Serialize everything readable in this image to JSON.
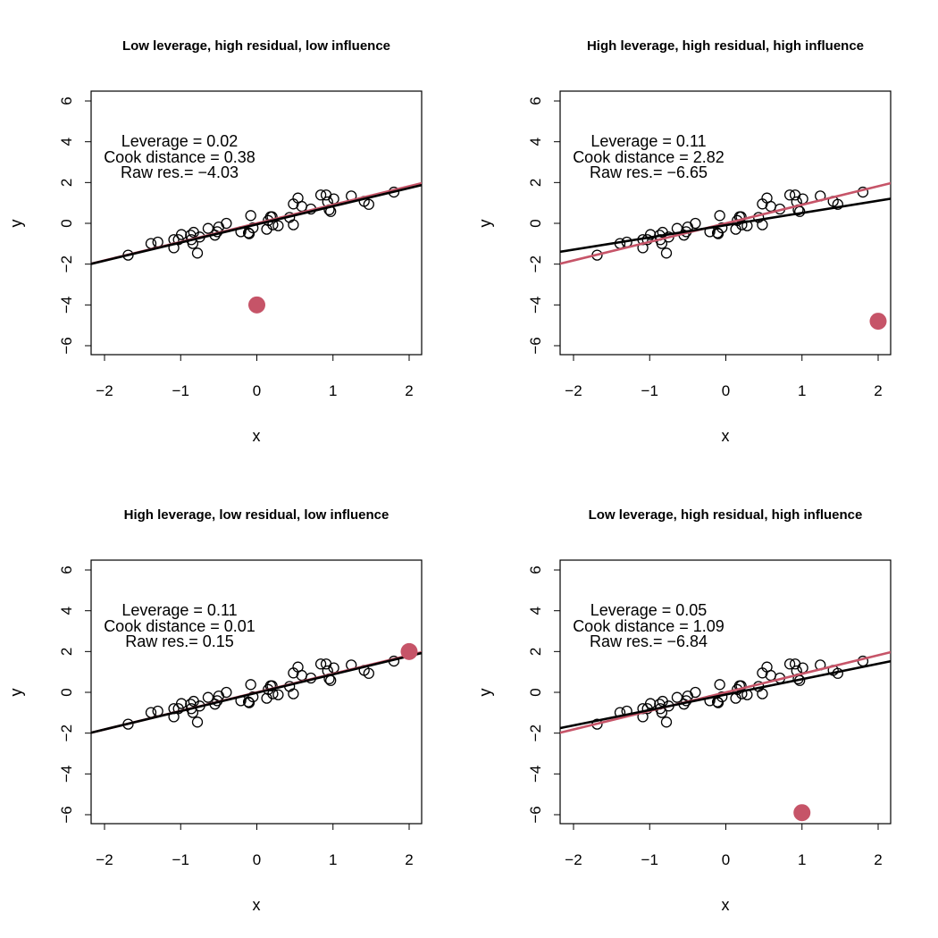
{
  "chart_data": {
    "type": "scatter",
    "xlabel": "x",
    "ylabel": "y",
    "xlim": [
      -2.2,
      2.15
    ],
    "ylim": [
      -6.5,
      6.5
    ],
    "xticks": [
      "-2",
      "-1",
      "0",
      "1",
      "2"
    ],
    "xtick_values": [
      -2,
      -1,
      0,
      1,
      2
    ],
    "yticks": [
      "-6",
      "-4",
      "-2",
      "0",
      "2",
      "4",
      "6"
    ],
    "ytick_values": [
      -6,
      -4,
      -2,
      0,
      2,
      4,
      6
    ],
    "colors": {
      "points": "#000000",
      "fit_all": "#000000",
      "fit_without": "#C65468",
      "outlier": "#C65468"
    },
    "base_points": [
      [
        -1.69,
        -1.56
      ],
      [
        -1.39,
        -0.99
      ],
      [
        -1.3,
        -0.92
      ],
      [
        -1.09,
        -0.8
      ],
      [
        -1.09,
        -1.2
      ],
      [
        -1.03,
        -0.8
      ],
      [
        -0.99,
        -0.55
      ],
      [
        -0.87,
        -0.58
      ],
      [
        -0.84,
        -0.99
      ],
      [
        -0.83,
        -0.44
      ],
      [
        -0.86,
        -0.8
      ],
      [
        -0.78,
        -1.46
      ],
      [
        -0.75,
        -0.67
      ],
      [
        -0.64,
        -0.25
      ],
      [
        -0.55,
        -0.58
      ],
      [
        -0.5,
        -0.18
      ],
      [
        -0.52,
        -0.41
      ],
      [
        -0.4,
        0.0
      ],
      [
        -0.21,
        -0.41
      ],
      [
        -0.11,
        -0.47
      ],
      [
        -0.08,
        0.38
      ],
      [
        -0.1,
        -0.51
      ],
      [
        -0.05,
        -0.22
      ],
      [
        0.13,
        -0.29
      ],
      [
        0.15,
        0.14
      ],
      [
        0.18,
        0.32
      ],
      [
        0.2,
        0.32
      ],
      [
        0.21,
        -0.07
      ],
      [
        0.28,
        -0.12
      ],
      [
        0.43,
        0.29
      ],
      [
        0.48,
        -0.07
      ],
      [
        0.48,
        0.95
      ],
      [
        0.54,
        1.24
      ],
      [
        0.59,
        0.83
      ],
      [
        0.71,
        0.7
      ],
      [
        0.84,
        1.39
      ],
      [
        0.91,
        1.39
      ],
      [
        0.93,
        1.05
      ],
      [
        0.95,
        0.66
      ],
      [
        0.97,
        0.58
      ],
      [
        1.01,
        1.2
      ],
      [
        1.24,
        1.34
      ],
      [
        1.41,
        1.08
      ],
      [
        1.47,
        0.93
      ],
      [
        1.8,
        1.53
      ]
    ],
    "panels": [
      {
        "title": "Low leverage, high residual, low influence",
        "outlier": [
          0,
          -4
        ],
        "fit_all": {
          "intercept": -0.05,
          "slope": 0.89
        },
        "fit_without": {
          "intercept": 0.0,
          "slope": 0.91
        },
        "annotations": [
          "Leverage = 0.02",
          "Cook distance = 0.38",
          "Raw res.= −4.03"
        ]
      },
      {
        "title": "High leverage, high residual, high influence",
        "outlier": [
          2,
          -4.8
        ],
        "fit_all": {
          "intercept": -0.09,
          "slope": 0.6
        },
        "fit_without": {
          "intercept": 0.0,
          "slope": 0.91
        },
        "annotations": [
          "Leverage = 0.11",
          "Cook distance = 2.82",
          "Raw res.= −6.65"
        ]
      },
      {
        "title": "High leverage, low residual, low influence",
        "outlier": [
          2,
          2
        ],
        "fit_all": {
          "intercept": -0.02,
          "slope": 0.9
        },
        "fit_without": {
          "intercept": 0.0,
          "slope": 0.91
        },
        "annotations": [
          "Leverage = 0.11",
          "Cook distance = 0.01",
          "Raw res.= 0.15"
        ]
      },
      {
        "title": "Low leverage, high residual, high influence",
        "outlier": [
          1,
          -5.9
        ],
        "fit_all": {
          "intercept": -0.11,
          "slope": 0.755
        },
        "fit_without": {
          "intercept": 0.0,
          "slope": 0.91
        },
        "annotations": [
          "Leverage = 0.05",
          "Cook distance = 1.09",
          "Raw res.= −6.84"
        ]
      }
    ]
  }
}
